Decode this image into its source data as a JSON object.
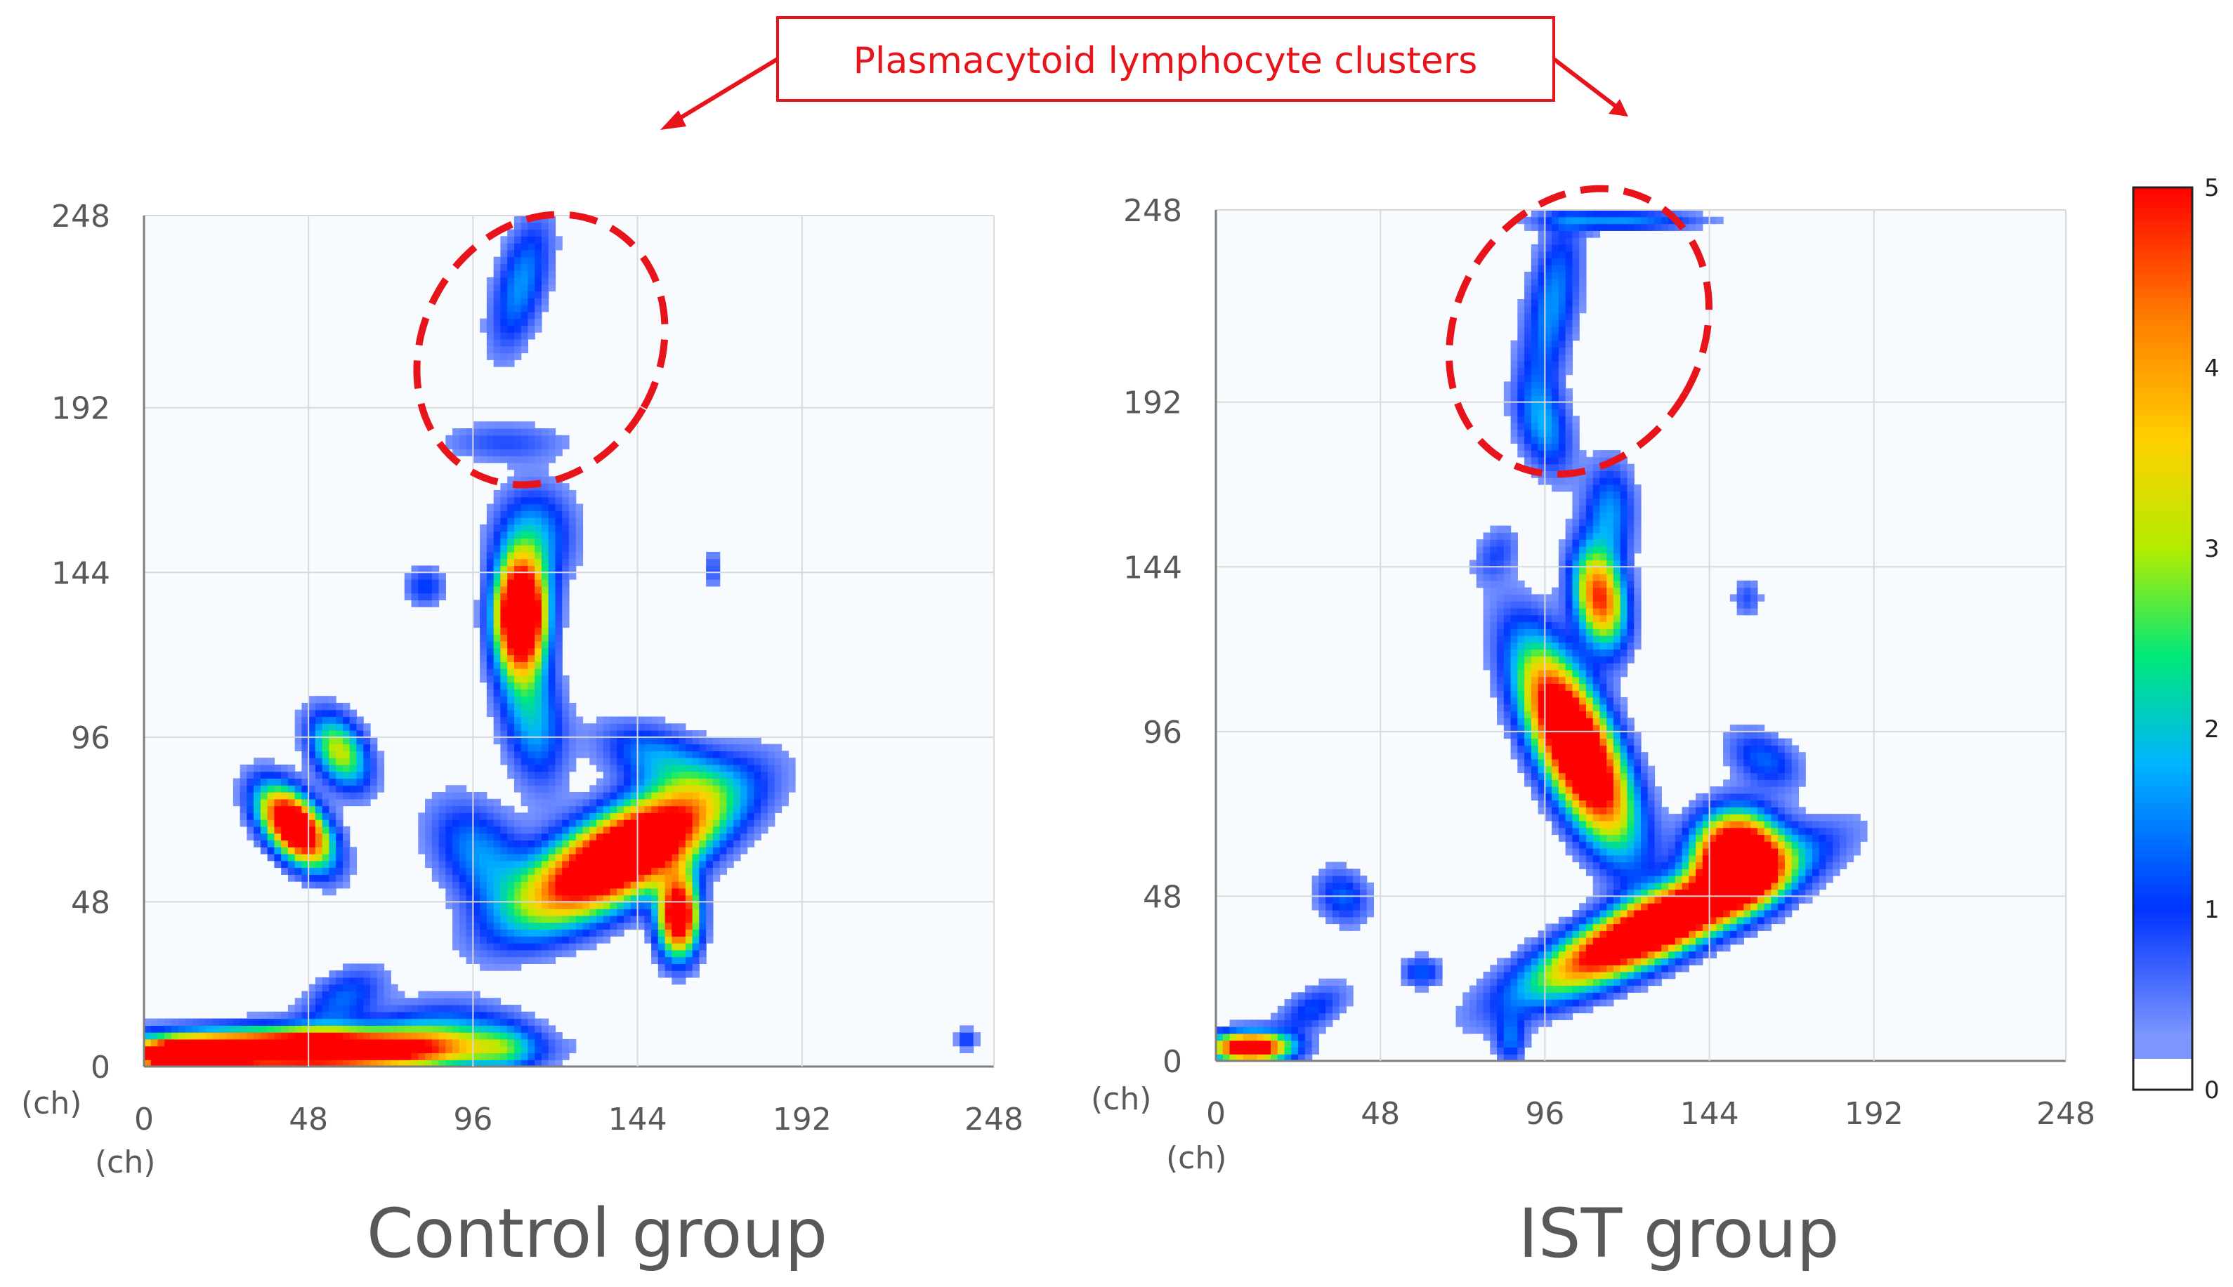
{
  "annotation": {
    "text": "Plasmacytoid lymphocyte clusters",
    "color": "#e8141c"
  },
  "chart_data": [
    {
      "type": "heatmap",
      "title": "Control group",
      "x_unit": "(ch)",
      "y_unit": "(ch)",
      "xlim": [
        0,
        248
      ],
      "ylim": [
        0,
        248
      ],
      "x_ticks": [
        "0",
        "48",
        "96",
        "144",
        "192",
        "248"
      ],
      "y_ticks": [
        "0",
        "48",
        "96",
        "144",
        "192",
        "248"
      ],
      "grid": true,
      "clusters": [
        {
          "x": 48,
          "y": 5,
          "sx": 30,
          "sy": 4,
          "peak": 5,
          "rot": 0
        },
        {
          "x": 12,
          "y": 3,
          "sx": 10,
          "sy": 3,
          "peak": 4,
          "rot": 0
        },
        {
          "x": 88,
          "y": 10,
          "sx": 14,
          "sy": 6,
          "peak": 1,
          "rot": 0
        },
        {
          "x": 58,
          "y": 20,
          "sx": 9,
          "sy": 5,
          "peak": 0.8,
          "rot": 30
        },
        {
          "x": 106,
          "y": 5,
          "sx": 6,
          "sy": 5,
          "peak": 0.7,
          "rot": 0
        },
        {
          "x": 140,
          "y": 62,
          "sx": 22,
          "sy": 8,
          "peak": 5,
          "rot": 30
        },
        {
          "x": 156,
          "y": 44,
          "sx": 4,
          "sy": 8,
          "peak": 4,
          "rot": 0
        },
        {
          "x": 150,
          "y": 90,
          "sx": 12,
          "sy": 6,
          "peak": 1,
          "rot": -20
        },
        {
          "x": 113,
          "y": 103,
          "sx": 6,
          "sy": 14,
          "peak": 1.2,
          "rot": 10
        },
        {
          "x": 98,
          "y": 62,
          "sx": 8,
          "sy": 12,
          "peak": 1,
          "rot": 40
        },
        {
          "x": 110,
          "y": 132,
          "sx": 5,
          "sy": 11,
          "peak": 5,
          "rot": 0
        },
        {
          "x": 114,
          "y": 155,
          "sx": 8,
          "sy": 10,
          "peak": 1,
          "rot": 0
        },
        {
          "x": 44,
          "y": 70,
          "sx": 5,
          "sy": 9,
          "peak": 4.5,
          "rot": 40
        },
        {
          "x": 57,
          "y": 92,
          "sx": 5,
          "sy": 8,
          "peak": 2,
          "rot": 30
        },
        {
          "x": 82,
          "y": 140,
          "sx": 4,
          "sy": 4,
          "peak": 0.7,
          "rot": 0
        },
        {
          "x": 110,
          "y": 228,
          "sx": 5,
          "sy": 14,
          "peak": 1,
          "rot": -15
        },
        {
          "x": 105,
          "y": 182,
          "sx": 13,
          "sy": 4,
          "peak": 0.5,
          "rot": 0
        },
        {
          "x": 166,
          "y": 145,
          "sx": 2,
          "sy": 4,
          "peak": 0.5,
          "rot": 0
        },
        {
          "x": 240,
          "y": 8,
          "sx": 2,
          "sy": 2,
          "peak": 0.7,
          "rot": 0
        }
      ]
    },
    {
      "type": "heatmap",
      "title": "IST group",
      "x_unit": "(ch)",
      "y_unit": "(ch)",
      "xlim": [
        0,
        248
      ],
      "ylim": [
        0,
        248
      ],
      "x_ticks": [
        "0",
        "48",
        "96",
        "144",
        "192",
        "248"
      ],
      "y_ticks": [
        "0",
        "48",
        "96",
        "144",
        "192",
        "248"
      ],
      "grid": true,
      "clusters": [
        {
          "x": 105,
          "y": 92,
          "sx": 7,
          "sy": 20,
          "peak": 5,
          "rot": 25
        },
        {
          "x": 112,
          "y": 135,
          "sx": 5,
          "sy": 10,
          "peak": 3,
          "rot": 10
        },
        {
          "x": 115,
          "y": 160,
          "sx": 5,
          "sy": 10,
          "peak": 1,
          "rot": 0
        },
        {
          "x": 130,
          "y": 40,
          "sx": 26,
          "sy": 6,
          "peak": 5,
          "rot": 26
        },
        {
          "x": 152,
          "y": 60,
          "sx": 8,
          "sy": 8,
          "peak": 5,
          "rot": 0
        },
        {
          "x": 160,
          "y": 88,
          "sx": 8,
          "sy": 5,
          "peak": 0.8,
          "rot": -30
        },
        {
          "x": 98,
          "y": 220,
          "sx": 5,
          "sy": 18,
          "peak": 1,
          "rot": -10
        },
        {
          "x": 96,
          "y": 185,
          "sx": 5,
          "sy": 10,
          "peak": 1,
          "rot": 15
        },
        {
          "x": 118,
          "y": 245,
          "sx": 16,
          "sy": 2,
          "peak": 1,
          "rot": 0
        },
        {
          "x": 10,
          "y": 4,
          "sx": 8,
          "sy": 3,
          "peak": 4,
          "rot": 0
        },
        {
          "x": 28,
          "y": 15,
          "sx": 8,
          "sy": 4,
          "peak": 0.7,
          "rot": 30
        },
        {
          "x": 37,
          "y": 48,
          "sx": 5,
          "sy": 6,
          "peak": 0.8,
          "rot": 40
        },
        {
          "x": 60,
          "y": 26,
          "sx": 4,
          "sy": 3,
          "peak": 0.8,
          "rot": 0
        },
        {
          "x": 86,
          "y": 6,
          "sx": 3,
          "sy": 5,
          "peak": 0.8,
          "rot": 0
        },
        {
          "x": 82,
          "y": 148,
          "sx": 4,
          "sy": 6,
          "peak": 0.5,
          "rot": -30
        },
        {
          "x": 155,
          "y": 135,
          "sx": 3,
          "sy": 4,
          "peak": 0.5,
          "rot": 0
        }
      ]
    }
  ],
  "colorbar": {
    "min": 0,
    "max": 5,
    "ticks": [
      "0",
      "1",
      "2",
      "3",
      "4",
      "5"
    ],
    "colors": [
      "#ffffff",
      "#7c96ff",
      "#0033ff",
      "#00b4ff",
      "#00e87a",
      "#b4ec00",
      "#ffd000",
      "#ff7a00",
      "#ff0000"
    ]
  }
}
